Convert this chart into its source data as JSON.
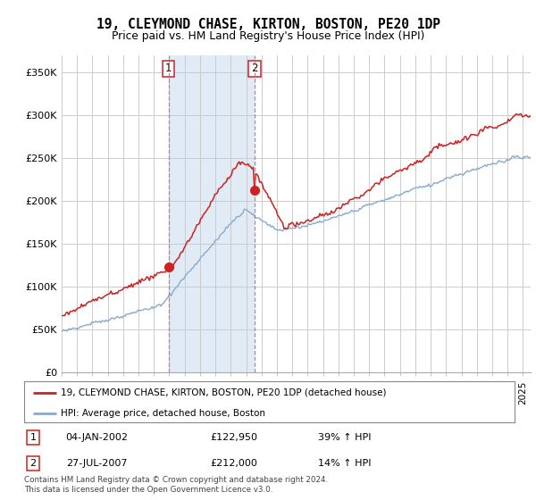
{
  "title": "19, CLEYMOND CHASE, KIRTON, BOSTON, PE20 1DP",
  "subtitle": "Price paid vs. HM Land Registry's House Price Index (HPI)",
  "ylim": [
    0,
    370000
  ],
  "yticks": [
    0,
    50000,
    100000,
    150000,
    200000,
    250000,
    300000,
    350000
  ],
  "ytick_labels": [
    "£0",
    "£50K",
    "£100K",
    "£150K",
    "£200K",
    "£250K",
    "£300K",
    "£350K"
  ],
  "background_color": "#ffffff",
  "plot_bg_color": "#ffffff",
  "grid_color": "#cccccc",
  "line1_color": "#cc2222",
  "line2_color": "#88aacc",
  "span_color": "#dce8f5",
  "vline_color": "#dd6677",
  "marker1_price": 122950,
  "marker2_price": 212000,
  "sale1_year": 2002.0,
  "sale2_year": 2007.583,
  "sale1_date": "04-JAN-2002",
  "sale1_price": "£122,950",
  "sale1_hpi": "39% ↑ HPI",
  "sale2_date": "27-JUL-2007",
  "sale2_price": "£212,000",
  "sale2_hpi": "14% ↑ HPI",
  "legend1_label": "19, CLEYMOND CHASE, KIRTON, BOSTON, PE20 1DP (detached house)",
  "legend2_label": "HPI: Average price, detached house, Boston",
  "footnote": "Contains HM Land Registry data © Crown copyright and database right 2024.\nThis data is licensed under the Open Government Licence v3.0.",
  "xstart_year": 1995,
  "xend_year": 2025
}
